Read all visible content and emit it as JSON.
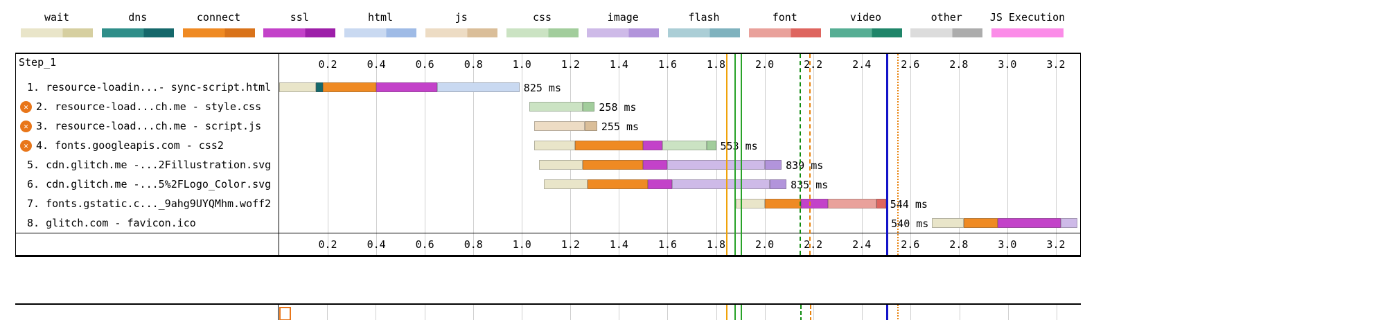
{
  "legend": {
    "items": [
      {
        "key": "wait",
        "label": "wait",
        "light": "#E9E5C9",
        "dark": "#D6CFA0"
      },
      {
        "key": "dns",
        "label": "dns",
        "light": "#2F8E89",
        "dark": "#15686B"
      },
      {
        "key": "connect",
        "label": "connect",
        "light": "#EF8A23",
        "dark": "#D9731A"
      },
      {
        "key": "ssl",
        "label": "ssl",
        "light": "#C342C9",
        "dark": "#9D1FA9"
      },
      {
        "key": "html",
        "label": "html",
        "light": "#C9D9F1",
        "dark": "#9FBBE6"
      },
      {
        "key": "js",
        "label": "js",
        "light": "#EDDCC4",
        "dark": "#DABE99"
      },
      {
        "key": "css",
        "label": "css",
        "light": "#CBE3C3",
        "dark": "#A2CD9C"
      },
      {
        "key": "image",
        "label": "image",
        "light": "#CEBAE8",
        "dark": "#B294DB"
      },
      {
        "key": "flash",
        "label": "flash",
        "light": "#ABCED6",
        "dark": "#7FB2BE"
      },
      {
        "key": "font",
        "label": "font",
        "light": "#E9A19B",
        "dark": "#DE655F"
      },
      {
        "key": "video",
        "label": "video",
        "light": "#56AE94",
        "dark": "#1F8569"
      },
      {
        "key": "other",
        "label": "other",
        "light": "#DCDCDC",
        "dark": "#ACACAC"
      },
      {
        "key": "js-exec",
        "label": "JS Execution",
        "light": "#FB8CE8",
        "dark": "#FB8CE8"
      }
    ]
  },
  "chart_data": {
    "type": "waterfall",
    "step_label": "Step_1",
    "time_axis": {
      "unit": "seconds",
      "max": 3.3,
      "ticks": [
        0.2,
        0.4,
        0.6,
        0.8,
        1.0,
        1.2,
        1.4,
        1.6,
        1.8,
        2.0,
        2.2,
        2.4,
        2.6,
        2.8,
        3.0,
        3.2
      ]
    },
    "requests": [
      {
        "label": "1. resource-loadin...- sync-script.html",
        "blocked": false,
        "duration_label": "825 ms",
        "label_side": "right",
        "segments": [
          {
            "phase": "wait",
            "shade": "light",
            "start": 0.0,
            "end": 0.15
          },
          {
            "phase": "dns",
            "shade": "dark",
            "start": 0.15,
            "end": 0.18
          },
          {
            "phase": "connect",
            "shade": "light",
            "start": 0.18,
            "end": 0.4
          },
          {
            "phase": "ssl",
            "shade": "light",
            "start": 0.4,
            "end": 0.65
          },
          {
            "phase": "html",
            "shade": "light",
            "start": 0.65,
            "end": 0.99
          }
        ]
      },
      {
        "label": "2. resource-load...ch.me - style.css",
        "blocked": true,
        "duration_label": "258 ms",
        "label_side": "right",
        "segments": [
          {
            "phase": "css",
            "shade": "light",
            "start": 1.03,
            "end": 1.25
          },
          {
            "phase": "css",
            "shade": "dark",
            "start": 1.25,
            "end": 1.3
          }
        ]
      },
      {
        "label": "3. resource-load...ch.me - script.js",
        "blocked": true,
        "duration_label": "255 ms",
        "label_side": "right",
        "segments": [
          {
            "phase": "js",
            "shade": "light",
            "start": 1.05,
            "end": 1.26
          },
          {
            "phase": "js",
            "shade": "dark",
            "start": 1.26,
            "end": 1.31
          }
        ]
      },
      {
        "label": "4. fonts.googleapis.com - css2",
        "blocked": true,
        "duration_label": "553 ms",
        "label_side": "right",
        "segments": [
          {
            "phase": "wait",
            "shade": "light",
            "start": 1.05,
            "end": 1.22
          },
          {
            "phase": "connect",
            "shade": "light",
            "start": 1.22,
            "end": 1.5
          },
          {
            "phase": "ssl",
            "shade": "light",
            "start": 1.5,
            "end": 1.58
          },
          {
            "phase": "css",
            "shade": "light",
            "start": 1.58,
            "end": 1.76
          },
          {
            "phase": "css",
            "shade": "dark",
            "start": 1.76,
            "end": 1.8
          }
        ]
      },
      {
        "label": "5. cdn.glitch.me -...2Fillustration.svg",
        "blocked": false,
        "duration_label": "839 ms",
        "label_side": "right",
        "segments": [
          {
            "phase": "wait",
            "shade": "light",
            "start": 1.07,
            "end": 1.25
          },
          {
            "phase": "connect",
            "shade": "light",
            "start": 1.25,
            "end": 1.5
          },
          {
            "phase": "ssl",
            "shade": "light",
            "start": 1.5,
            "end": 1.6
          },
          {
            "phase": "image",
            "shade": "light",
            "start": 1.6,
            "end": 2.0
          },
          {
            "phase": "image",
            "shade": "dark",
            "start": 2.0,
            "end": 2.07
          }
        ]
      },
      {
        "label": "6. cdn.glitch.me -...5%2FLogo_Color.svg",
        "blocked": false,
        "duration_label": "835 ms",
        "label_side": "right",
        "segments": [
          {
            "phase": "wait",
            "shade": "light",
            "start": 1.09,
            "end": 1.27
          },
          {
            "phase": "connect",
            "shade": "light",
            "start": 1.27,
            "end": 1.52
          },
          {
            "phase": "ssl",
            "shade": "light",
            "start": 1.52,
            "end": 1.62
          },
          {
            "phase": "image",
            "shade": "light",
            "start": 1.62,
            "end": 2.02
          },
          {
            "phase": "image",
            "shade": "dark",
            "start": 2.02,
            "end": 2.09
          }
        ]
      },
      {
        "label": "7. fonts.gstatic.c..._9ahg9UYQMhm.woff2",
        "blocked": false,
        "duration_label": "544 ms",
        "label_side": "right",
        "segments": [
          {
            "phase": "wait",
            "shade": "light",
            "start": 1.88,
            "end": 2.0
          },
          {
            "phase": "connect",
            "shade": "light",
            "start": 2.0,
            "end": 2.15
          },
          {
            "phase": "ssl",
            "shade": "light",
            "start": 2.15,
            "end": 2.26
          },
          {
            "phase": "font",
            "shade": "light",
            "start": 2.26,
            "end": 2.46
          },
          {
            "phase": "font",
            "shade": "dark",
            "start": 2.46,
            "end": 2.5
          }
        ]
      },
      {
        "label": "8. glitch.com - favicon.ico",
        "blocked": false,
        "duration_label": "540 ms",
        "label_side": "left",
        "segments": [
          {
            "phase": "wait",
            "shade": "light",
            "start": 2.69,
            "end": 2.82
          },
          {
            "phase": "connect",
            "shade": "light",
            "start": 2.82,
            "end": 2.96
          },
          {
            "phase": "ssl",
            "shade": "light",
            "start": 2.96,
            "end": 3.22
          },
          {
            "phase": "image",
            "shade": "light",
            "start": 3.22,
            "end": 3.29
          }
        ]
      }
    ],
    "markers": [
      {
        "name": "orange-line",
        "time": 1.84,
        "color": "#F0A30A",
        "style": "solid",
        "width": 2
      },
      {
        "name": "green-line-1",
        "time": 1.875,
        "color": "#28A228",
        "style": "solid",
        "width": 2
      },
      {
        "name": "green-line-2",
        "time": 1.9,
        "color": "#28A228",
        "style": "solid",
        "width": 2
      },
      {
        "name": "green-dashed-line",
        "time": 2.145,
        "color": "#0E8A0E",
        "style": "dashed",
        "width": 2
      },
      {
        "name": "orange-dashed-line",
        "time": 2.185,
        "color": "#E8820C",
        "style": "dashed",
        "width": 2
      },
      {
        "name": "blue-line",
        "time": 2.5,
        "color": "#1414C8",
        "style": "solid",
        "width": 3
      },
      {
        "name": "orange-dotted-line",
        "time": 2.545,
        "color": "#E8820C",
        "style": "dotted",
        "width": 2
      }
    ]
  }
}
